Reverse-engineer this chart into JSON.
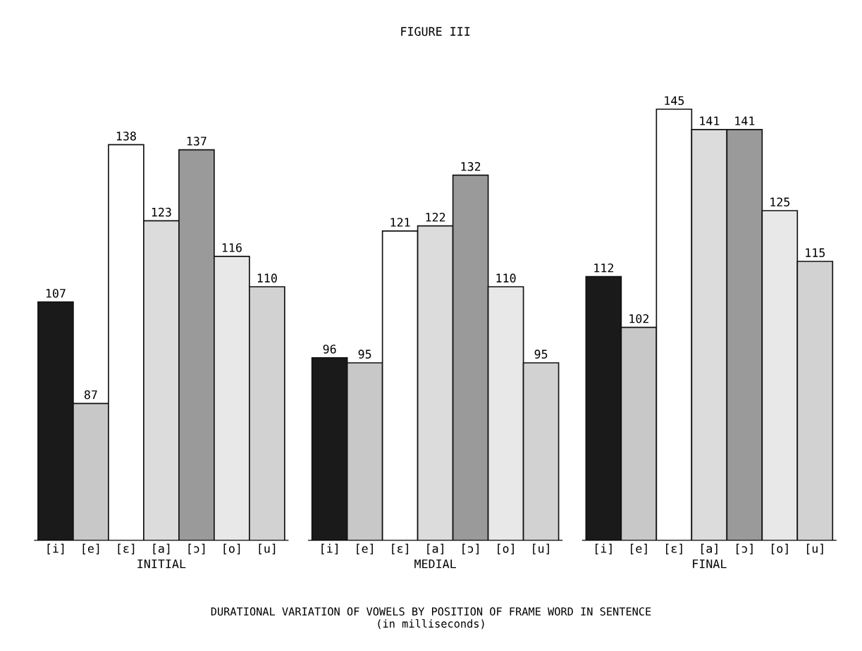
{
  "chart_data": [
    {
      "type": "bar",
      "xlabel": "INITIAL",
      "categories": [
        "[i]",
        "[e]",
        "[ɛ]",
        "[a]",
        "[ɔ]",
        "[o]",
        "[u]"
      ],
      "values": [
        107,
        87,
        138,
        123,
        137,
        116,
        110
      ],
      "colors": [
        "#1a1a1a",
        "#c8c8c8",
        "#ffffff",
        "#dcdcdc",
        "#9a9a9a",
        "#e8e8e8",
        "#d2d2d2"
      ],
      "data_labels": true,
      "tick_labels": "x"
    },
    {
      "type": "bar",
      "title": "FIGURE III",
      "xlabel": "MEDIAL",
      "categories": [
        "[i]",
        "[e]",
        "[ɛ]",
        "[a]",
        "[ɔ]",
        "[o]",
        "[u]"
      ],
      "values": [
        96,
        95,
        121,
        122,
        132,
        110,
        95
      ],
      "colors": [
        "#1a1a1a",
        "#c8c8c8",
        "#ffffff",
        "#dcdcdc",
        "#9a9a9a",
        "#e8e8e8",
        "#d2d2d2"
      ],
      "data_labels": true,
      "tick_labels": "x",
      "annotations": [
        "DURATIONAL VARIATION OF VOWELS BY POSITION OF FRAME WORD IN SENTENCE\n(in milliseconds)"
      ]
    },
    {
      "type": "bar",
      "xlabel": "FINAL",
      "categories": [
        "[i]",
        "[e]",
        "[ɛ]",
        "[a]",
        "[ɔ]",
        "[o]",
        "[u]"
      ],
      "values": [
        112,
        102,
        145,
        141,
        141,
        125,
        115
      ],
      "colors": [
        "#1a1a1a",
        "#c8c8c8",
        "#ffffff",
        "#dcdcdc",
        "#9a9a9a",
        "#e8e8e8",
        "#d2d2d2"
      ],
      "data_labels": true,
      "tick_labels": "x"
    }
  ]
}
